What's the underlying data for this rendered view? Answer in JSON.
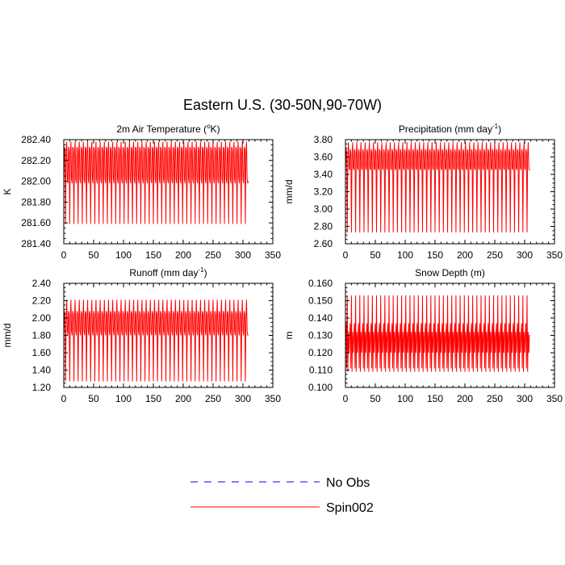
{
  "title": "Eastern U.S. (30-50N,90-70W)",
  "chart_data": [
    {
      "type": "line",
      "title": "2m Air Temperature",
      "title_unit_prefix": " (",
      "title_unit_sup": "o",
      "title_unit_suffix": "K)",
      "ylabel": "K",
      "xlim": [
        0,
        350
      ],
      "ylim": [
        281.4,
        282.4
      ],
      "x_ticks": [
        "0",
        "50",
        "100",
        "150",
        "200",
        "250",
        "300",
        "350"
      ],
      "y_ticks": [
        "281.40",
        "281.60",
        "281.80",
        "282.00",
        "282.20",
        "282.40"
      ],
      "series": [
        {
          "name": "Spin002",
          "color": "#ff0000",
          "cycle_period": 7,
          "cycle_count": 44,
          "cycle_pattern": [
            281.98,
            282.33,
            282.31,
            281.59,
            282.28,
            282.38,
            282.02
          ],
          "last_value": 282.0
        }
      ]
    },
    {
      "type": "line",
      "title": "Precipitation",
      "title_unit_prefix": " (mm day",
      "title_unit_sup": "-1",
      "title_unit_suffix": ")",
      "ylabel": "mm/d",
      "xlim": [
        0,
        350
      ],
      "ylim": [
        2.6,
        3.8
      ],
      "x_ticks": [
        "0",
        "50",
        "100",
        "150",
        "200",
        "250",
        "300",
        "350"
      ],
      "y_ticks": [
        "2.60",
        "2.80",
        "3.00",
        "3.20",
        "3.40",
        "3.60",
        "3.80"
      ],
      "series": [
        {
          "name": "Spin002",
          "color": "#ff0000",
          "cycle_period": 7,
          "cycle_count": 44,
          "cycle_pattern": [
            3.45,
            3.69,
            3.66,
            2.73,
            3.62,
            3.77,
            3.47
          ],
          "last_value": 3.45
        }
      ]
    },
    {
      "type": "line",
      "title": "Runoff",
      "title_unit_prefix": " (mm day",
      "title_unit_sup": "-1",
      "title_unit_suffix": ")",
      "ylabel": "mm/d",
      "xlim": [
        0,
        350
      ],
      "ylim": [
        1.2,
        2.4
      ],
      "x_ticks": [
        "0",
        "50",
        "100",
        "150",
        "200",
        "250",
        "300",
        "350"
      ],
      "y_ticks": [
        "1.20",
        "1.40",
        "1.60",
        "1.80",
        "2.00",
        "2.20",
        "2.40"
      ],
      "series": [
        {
          "name": "Spin002",
          "color": "#ff0000",
          "cycle_period": 7,
          "cycle_count": 44,
          "cycle_pattern": [
            1.8,
            2.08,
            2.05,
            1.27,
            2.0,
            2.21,
            1.85
          ],
          "last_value": 1.8
        }
      ]
    },
    {
      "type": "line",
      "title": "Snow Depth (m)",
      "title_unit_prefix": "",
      "title_unit_sup": "",
      "title_unit_suffix": "",
      "ylabel": "m",
      "xlim": [
        0,
        350
      ],
      "ylim": [
        0.1,
        0.16
      ],
      "x_ticks": [
        "0",
        "50",
        "100",
        "150",
        "200",
        "250",
        "300",
        "350"
      ],
      "y_ticks": [
        "0.100",
        "0.110",
        "0.120",
        "0.130",
        "0.140",
        "0.150",
        "0.160"
      ],
      "series": [
        {
          "name": "Spin002",
          "color": "#ff0000",
          "cycle_period": 7,
          "cycle_count": 44,
          "cycle_pattern": [
            0.13,
            0.137,
            0.111,
            0.153,
            0.109,
            0.132,
            0.12
          ],
          "last_value": 0.13
        }
      ]
    }
  ],
  "legend": {
    "placement": "bottom-center",
    "items": [
      {
        "label": "No Obs",
        "color": "#0000ff",
        "dash": "dashed"
      },
      {
        "label": "Spin002",
        "color": "#ff0000",
        "dash": "solid"
      }
    ]
  }
}
